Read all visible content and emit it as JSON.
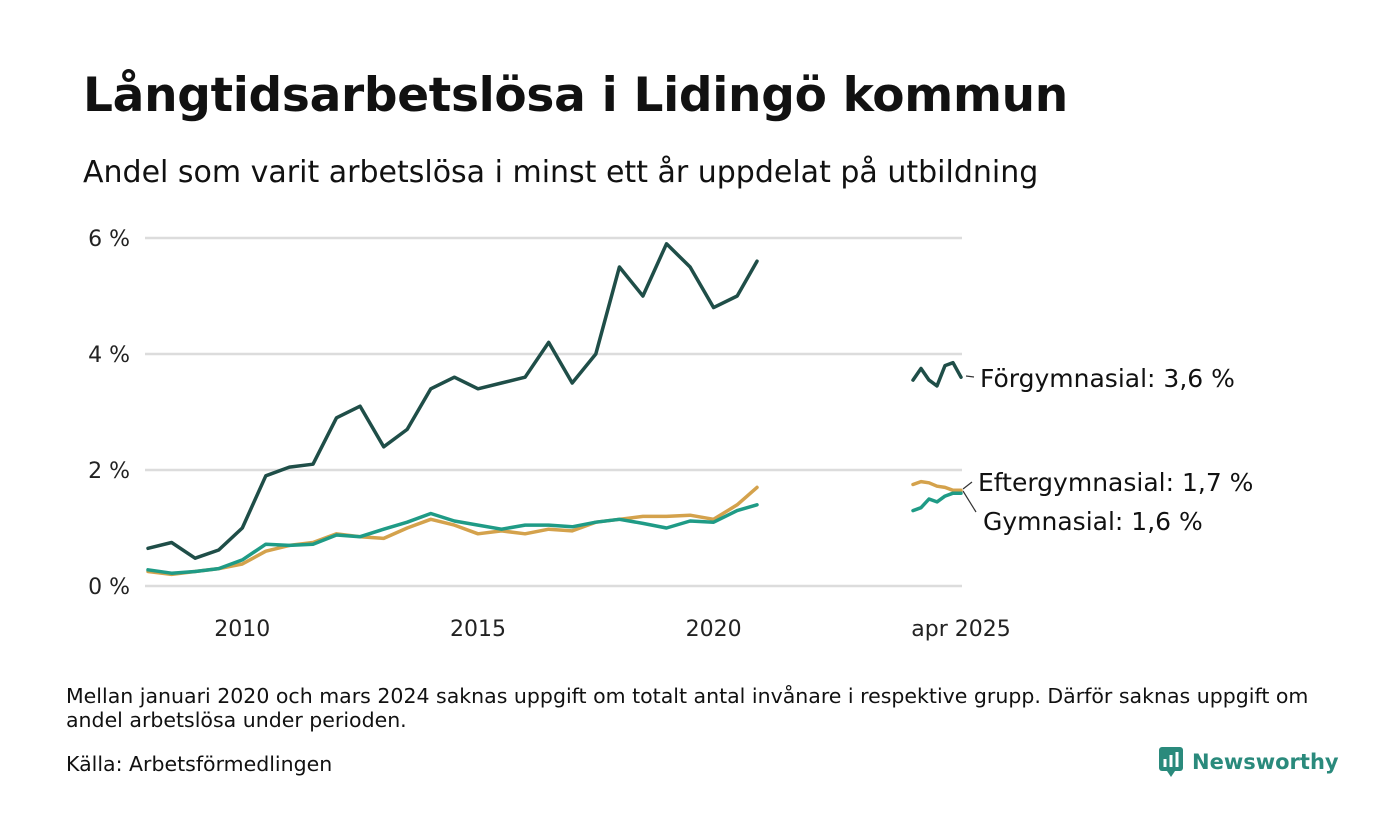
{
  "title": "Långtidsarbetslösa i Lidingö kommun",
  "subtitle": "Andel som varit arbetslösa i minst ett år uppdelat på utbildning",
  "note": "Mellan januari 2020 och mars 2024 saknas uppgift om totalt antal invånare i respektive grupp. Därför saknas uppgift om andel arbetslösa under perioden.",
  "source": "Källa: Arbetsförmedlingen",
  "brand": {
    "name": "Newsworthy",
    "icon": "newsworthy-logo-icon",
    "color": "#2a8a7c"
  },
  "chart_data": {
    "type": "line",
    "title": "Långtidsarbetslösa i Lidingö kommun",
    "subtitle": "Andel som varit arbetslösa i minst ett år uppdelat på utbildning",
    "ylim": [
      0,
      6
    ],
    "y_ticks": [
      0,
      2,
      4,
      6
    ],
    "y_tick_labels": [
      "0 %",
      "2 %",
      "4 %",
      "6 %"
    ],
    "x_tick_labels": [
      "2010",
      "2015",
      "2020",
      "apr 2025"
    ],
    "x_ticks": [
      2010,
      2015,
      2020
    ],
    "grid": "horizontal",
    "legend": "end-labels",
    "series": [
      {
        "name": "Förgymnasial",
        "end_label": "Förgymnasial: 3,6 %",
        "color": "#1f4e48",
        "main_x": [
          2008.0,
          2008.5,
          2009.0,
          2009.5,
          2010.0,
          2010.5,
          2011.0,
          2011.5,
          2012.0,
          2012.5,
          2013.0,
          2013.5,
          2014.0,
          2014.5,
          2015.0,
          2015.5,
          2016.0,
          2016.5,
          2017.0,
          2017.5,
          2018.0,
          2018.5,
          2019.0,
          2019.5,
          2020.0,
          2020.5,
          2020.92
        ],
        "main_y": [
          0.65,
          0.75,
          0.48,
          0.62,
          1.0,
          1.9,
          2.05,
          2.1,
          2.9,
          3.1,
          2.4,
          2.7,
          3.4,
          3.6,
          3.4,
          3.5,
          3.6,
          4.2,
          3.5,
          4.0,
          5.5,
          5.0,
          5.9,
          5.5,
          4.8,
          5.0,
          5.6
        ],
        "recent_x": [
          "2024-04",
          "2024-06",
          "2024-08",
          "2024-10",
          "2024-12",
          "2025-02",
          "2025-04"
        ],
        "recent_y": [
          3.55,
          3.75,
          3.55,
          3.45,
          3.8,
          3.85,
          3.6
        ]
      },
      {
        "name": "Eftergymnasial",
        "end_label": "Eftergymnasial: 1,7 %",
        "color": "#d4a24c",
        "main_x": [
          2008.0,
          2008.5,
          2009.0,
          2009.5,
          2010.0,
          2010.5,
          2011.0,
          2011.5,
          2012.0,
          2012.5,
          2013.0,
          2013.5,
          2014.0,
          2014.5,
          2015.0,
          2015.5,
          2016.0,
          2016.5,
          2017.0,
          2017.5,
          2018.0,
          2018.5,
          2019.0,
          2019.5,
          2020.0,
          2020.5,
          2020.92
        ],
        "main_y": [
          0.25,
          0.2,
          0.25,
          0.3,
          0.38,
          0.6,
          0.7,
          0.75,
          0.9,
          0.85,
          0.82,
          1.0,
          1.15,
          1.05,
          0.9,
          0.95,
          0.9,
          0.98,
          0.95,
          1.1,
          1.15,
          1.2,
          1.2,
          1.22,
          1.15,
          1.4,
          1.7
        ],
        "recent_x": [
          "2024-04",
          "2024-06",
          "2024-08",
          "2024-10",
          "2024-12",
          "2025-02",
          "2025-04"
        ],
        "recent_y": [
          1.75,
          1.8,
          1.78,
          1.72,
          1.7,
          1.65,
          1.65
        ]
      },
      {
        "name": "Gymnasial",
        "end_label": "Gymnasial: 1,6 %",
        "color": "#1f9b86",
        "main_x": [
          2008.0,
          2008.5,
          2009.0,
          2009.5,
          2010.0,
          2010.5,
          2011.0,
          2011.5,
          2012.0,
          2012.5,
          2013.0,
          2013.5,
          2014.0,
          2014.5,
          2015.0,
          2015.5,
          2016.0,
          2016.5,
          2017.0,
          2017.5,
          2018.0,
          2018.5,
          2019.0,
          2019.5,
          2020.0,
          2020.5,
          2020.92
        ],
        "main_y": [
          0.28,
          0.22,
          0.25,
          0.3,
          0.45,
          0.72,
          0.7,
          0.72,
          0.88,
          0.85,
          0.98,
          1.1,
          1.25,
          1.12,
          1.05,
          0.98,
          1.05,
          1.05,
          1.02,
          1.1,
          1.15,
          1.08,
          1.0,
          1.12,
          1.1,
          1.3,
          1.4
        ],
        "recent_x": [
          "2024-04",
          "2024-06",
          "2024-08",
          "2024-10",
          "2024-12",
          "2025-02",
          "2025-04"
        ],
        "recent_y": [
          1.3,
          1.35,
          1.5,
          1.45,
          1.55,
          1.6,
          1.6
        ]
      }
    ]
  }
}
